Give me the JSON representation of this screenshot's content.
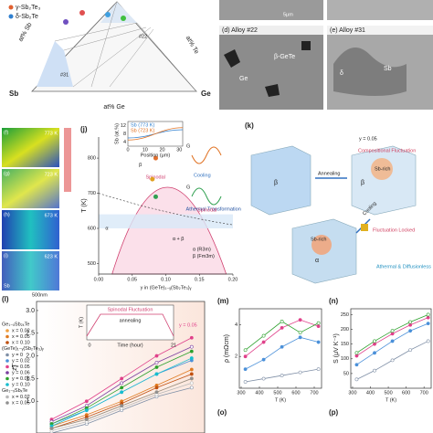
{
  "ternary": {
    "phases": [
      "γ-Sb₂Te₃",
      "δ-Sb₂Te"
    ],
    "axis_sb": "at% Sb",
    "axis_te": "at% Te",
    "axis_ge": "at% Ge",
    "corner_sb": "Sb",
    "corner_ge": "Ge",
    "points": [
      "#22",
      "#31"
    ]
  },
  "micrographs": [
    {
      "label": "(d) Alloy #22",
      "notes": [
        "β-GeTe",
        "Ge"
      ]
    },
    {
      "label": "(e) Alloy #31",
      "notes": [
        "δ",
        "Sb"
      ]
    }
  ],
  "scale_top": "5μm",
  "maps": {
    "labels": [
      "(f)",
      "(g)",
      "(h)",
      "(i)"
    ],
    "temps": [
      "773 K",
      "723 K",
      "673 K",
      "623 K"
    ],
    "element": "Sb",
    "scale": "500nm"
  },
  "phase_diagram": {
    "label": "(j)",
    "ylabel": "T (K)",
    "xlabel": "y in (GeTe)₁₋ᵧ(Sb₂Te₃)ᵧ",
    "xlim": [
      0,
      0.2
    ],
    "xticks": [
      {
        "value": 0,
        "label": "0.00"
      },
      0.05,
      {
        "value": 0.1,
        "label": "0.10"
      },
      0.15,
      {
        "value": 0.2,
        "label": "0.20"
      }
    ],
    "ylim": [
      470,
      860
    ],
    "yticks": [
      500,
      600,
      700,
      800
    ],
    "regions": [
      "β",
      "α",
      "α + β",
      "Spinodal",
      "Athermal Transformation"
    ],
    "structures": [
      "α (R3m)",
      "β (Fm3m)"
    ],
    "inset": {
      "ylabel": "Sb (at.%)",
      "xlabel": "Position (μm)",
      "yticks": [
        4,
        8,
        12
      ],
      "xticks": [
        0,
        10,
        20,
        30
      ],
      "legend": [
        "Sb (773 K)",
        "Sb (723 K)"
      ]
    },
    "energy": [
      "G",
      "Cooling",
      "G",
      "Spinodal"
    ]
  },
  "schematic": {
    "label": "(k)",
    "texts": [
      "y = 0.05",
      "Annealing",
      "Compositional Fluctuation",
      "Sb-rich",
      "Cooling",
      "Fluctuation Locked",
      "Sb-rich",
      "Athermal & Diffusionless"
    ],
    "phases": [
      "β",
      "β",
      "α"
    ]
  },
  "zt_chart": {
    "type": "line",
    "label": "(l)",
    "ylabel": "zT",
    "xlim": [
      280,
      760
    ],
    "ylim": [
      0.3,
      3.2
    ],
    "yticks": [
      {
        "value": 1,
        "label": "1.0"
      },
      1.5,
      {
        "value": 2,
        "label": "2.0"
      },
      2.5,
      {
        "value": 3,
        "label": "3.0"
      }
    ],
    "x": [
      323,
      423,
      523,
      623,
      723
    ],
    "legend_groups": [
      "Ge₁₋ₓSb₂ₓTe",
      "(GeTe)₁₋ᵧ(Sb₂Te₃)ᵧ",
      "Ge₁₋ₓSbₓTe"
    ],
    "series": [
      {
        "name": "x = 0.02",
        "color": "#f0a040",
        "values": [
          0.4,
          0.6,
          0.9,
          1.2,
          1.5
        ]
      },
      {
        "name": "x = 0.05",
        "color": "#e07a20",
        "values": [
          0.45,
          0.7,
          1.0,
          1.35,
          1.7
        ]
      },
      {
        "name": "x = 0.10",
        "color": "#c05010",
        "values": [
          0.4,
          0.65,
          0.95,
          1.3,
          1.6
        ]
      },
      {
        "name": "y = 0",
        "color": "#7f8fa6",
        "values": [
          0.3,
          0.5,
          0.8,
          1.1,
          1.3
        ]
      },
      {
        "name": "y = 0.02",
        "color": "#4a90d9",
        "values": [
          0.5,
          0.8,
          1.2,
          1.6,
          1.9
        ]
      },
      {
        "name": "y = 0.05",
        "color": "#e0408a",
        "values": [
          0.6,
          1.0,
          1.5,
          2.0,
          2.4
        ]
      },
      {
        "name": "y = 0.06",
        "color": "#7b3fa0",
        "values": [
          0.55,
          0.9,
          1.4,
          1.85,
          2.2
        ]
      },
      {
        "name": "y = 0.08",
        "color": "#2ca02c",
        "values": [
          0.5,
          0.85,
          1.3,
          1.75,
          2.1
        ]
      },
      {
        "name": "y = 0.10",
        "color": "#17becf",
        "values": [
          0.45,
          0.8,
          1.2,
          1.6,
          1.95
        ]
      },
      {
        "name": "x = 0.02",
        "color": "#b8b8b8",
        "values": [
          0.35,
          0.55,
          0.85,
          1.15,
          1.4
        ]
      },
      {
        "name": "x = 0.05",
        "color": "#909090",
        "values": [
          0.4,
          0.6,
          0.9,
          1.2,
          1.5
        ]
      }
    ],
    "inset": {
      "ylabel": "T (K)",
      "xlabel": "Time (hour)",
      "xticks": [
        0,
        21
      ],
      "title": "Spinodal Fluctuation",
      "note": "annealing"
    },
    "annotation": "y = 0.05"
  },
  "rho_chart": {
    "type": "line",
    "label": "(m)",
    "ylabel": "ρ (mΩcm)",
    "xlabel": "T (K)",
    "xlim": [
      290,
      740
    ],
    "xticks": [
      300,
      400,
      500,
      600,
      700
    ],
    "ylim": [
      0,
      5
    ],
    "yticks": [
      2,
      4
    ],
    "x": [
      323,
      423,
      523,
      623,
      723
    ],
    "series": [
      {
        "name": "y = 0",
        "color": "#7f8fa6",
        "values": [
          0.4,
          0.6,
          0.8,
          1.0,
          1.2
        ]
      },
      {
        "name": "y = 0.02",
        "color": "#4a90d9",
        "values": [
          1.2,
          1.8,
          2.6,
          3.2,
          2.9
        ]
      },
      {
        "name": "y = 0.05",
        "color": "#e0408a",
        "values": [
          2.0,
          2.9,
          3.8,
          4.3,
          3.9
        ]
      },
      {
        "name": "y = 0.08",
        "color": "#2ca02c",
        "values": [
          2.4,
          3.3,
          4.2,
          3.5,
          4.1
        ]
      }
    ]
  },
  "s_chart": {
    "type": "line",
    "label": "(n)",
    "ylabel": "S (μV K⁻¹)",
    "xlabel": "T (K)",
    "xlim": [
      290,
      740
    ],
    "xticks": [
      300,
      400,
      500,
      600,
      700
    ],
    "ylim": [
      0,
      270
    ],
    "yticks": [
      50,
      100,
      150,
      200,
      250
    ],
    "x": [
      323,
      423,
      523,
      623,
      723
    ],
    "series": [
      {
        "name": "y = 0",
        "color": "#7f8fa6",
        "values": [
          30,
          60,
          95,
          130,
          160
        ]
      },
      {
        "name": "y = 0.02",
        "color": "#4a90d9",
        "values": [
          80,
          120,
          160,
          195,
          220
        ]
      },
      {
        "name": "y = 0.05",
        "color": "#e0408a",
        "values": [
          110,
          150,
          185,
          215,
          240
        ]
      },
      {
        "name": "y = 0.08",
        "color": "#2ca02c",
        "values": [
          120,
          160,
          195,
          225,
          250
        ]
      }
    ]
  },
  "bottom_panels": [
    "(o)",
    "(p)"
  ]
}
